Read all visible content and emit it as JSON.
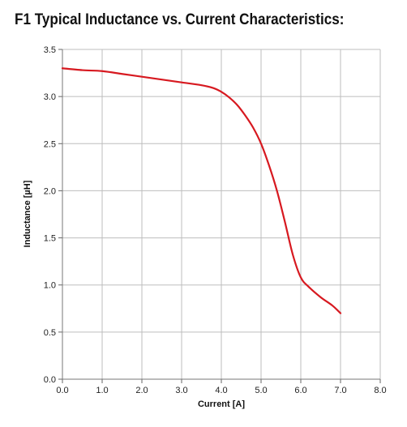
{
  "chart_data": {
    "type": "line",
    "title": "F1 Typical Inductance vs. Current Characteristics:",
    "xlabel": "Current [A]",
    "ylabel": "Inductance [µH]",
    "xlim": [
      0,
      8
    ],
    "ylim": [
      0,
      3.5
    ],
    "x_ticks": [
      "0.0",
      "1.0",
      "2.0",
      "3.0",
      "4.0",
      "5.0",
      "6.0",
      "7.0",
      "8.0"
    ],
    "y_ticks": [
      "0.0",
      "0.5",
      "1.0",
      "1.5",
      "2.0",
      "2.5",
      "3.0",
      "3.5"
    ],
    "grid": true,
    "series": [
      {
        "color": "#d71920",
        "x": [
          0.0,
          0.5,
          1.0,
          1.5,
          2.0,
          2.5,
          3.0,
          3.5,
          3.8,
          4.0,
          4.2,
          4.4,
          4.6,
          4.8,
          5.0,
          5.2,
          5.4,
          5.6,
          5.8,
          6.0,
          6.2,
          6.5,
          6.8,
          7.0
        ],
        "y": [
          3.3,
          3.28,
          3.27,
          3.24,
          3.21,
          3.18,
          3.15,
          3.12,
          3.09,
          3.05,
          2.99,
          2.91,
          2.8,
          2.67,
          2.5,
          2.27,
          2.0,
          1.67,
          1.32,
          1.08,
          0.98,
          0.87,
          0.78,
          0.7
        ]
      }
    ]
  }
}
